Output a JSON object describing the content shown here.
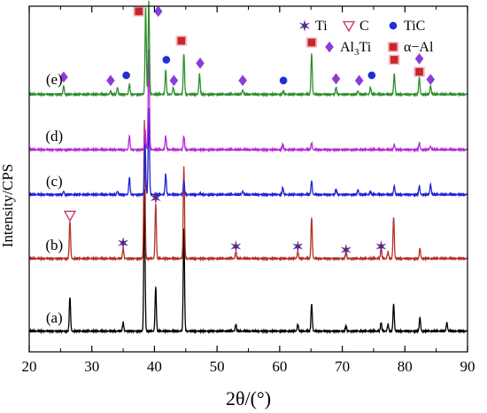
{
  "chart_data": {
    "type": "line",
    "title": "",
    "xlabel": "2θ/(°)",
    "ylabel": "Intensity/CPS",
    "xlim": [
      20,
      90
    ],
    "xticks": [
      20,
      30,
      40,
      50,
      60,
      70,
      80,
      90
    ],
    "grid": false,
    "legend": {
      "placement": "top-right",
      "entries": [
        {
          "label": "Ti",
          "symbol": "star",
          "color": "#5b2a86"
        },
        {
          "label": "C",
          "symbol": "triangle-down-open",
          "color": "#c0306a"
        },
        {
          "label": "TiC",
          "symbol": "circle",
          "color": "#1f2fd6"
        },
        {
          "label": "Al3Ti",
          "symbol": "diamond",
          "color": "#8a3ddb"
        },
        {
          "label": "α−Al",
          "symbol": "square",
          "color": "#c8262b"
        }
      ]
    },
    "series": [
      {
        "name": "(a)",
        "color": "#000000",
        "baseline": 0.06,
        "peaks": [
          [
            26.5,
            0.1
          ],
          [
            35.0,
            0.025
          ],
          [
            38.4,
            0.41
          ],
          [
            40.2,
            0.13
          ],
          [
            44.7,
            0.3
          ],
          [
            53.0,
            0.02
          ],
          [
            62.9,
            0.02
          ],
          [
            65.1,
            0.08
          ],
          [
            70.6,
            0.015
          ],
          [
            76.2,
            0.025
          ],
          [
            77.3,
            0.02
          ],
          [
            78.2,
            0.08
          ],
          [
            82.4,
            0.04
          ],
          [
            86.7,
            0.025
          ]
        ]
      },
      {
        "name": "(b)",
        "color": "#b4312a",
        "baseline": 0.27,
        "peaks": [
          [
            26.5,
            0.11
          ],
          [
            35.0,
            0.03
          ],
          [
            38.4,
            0.4
          ],
          [
            40.2,
            0.16
          ],
          [
            44.7,
            0.27
          ],
          [
            53.0,
            0.02
          ],
          [
            62.9,
            0.02
          ],
          [
            65.1,
            0.12
          ],
          [
            70.6,
            0.02
          ],
          [
            76.2,
            0.03
          ],
          [
            77.3,
            0.02
          ],
          [
            78.2,
            0.12
          ],
          [
            82.4,
            0.03
          ]
        ]
      },
      {
        "name": "(c)",
        "color": "#2323d4",
        "baseline": 0.455,
        "peaks": [
          [
            25.5,
            0.01
          ],
          [
            34.1,
            0.01
          ],
          [
            36.0,
            0.05
          ],
          [
            38.5,
            0.15
          ],
          [
            39.1,
            0.25
          ],
          [
            41.8,
            0.06
          ],
          [
            44.7,
            0.04
          ],
          [
            47.3,
            0.005
          ],
          [
            54.1,
            0.01
          ],
          [
            60.5,
            0.02
          ],
          [
            65.1,
            0.04
          ],
          [
            69.0,
            0.015
          ],
          [
            72.5,
            0.015
          ],
          [
            74.5,
            0.01
          ],
          [
            78.3,
            0.025
          ],
          [
            82.3,
            0.025
          ],
          [
            84.1,
            0.03
          ]
        ]
      },
      {
        "name": "(d)",
        "color": "#b82ad6",
        "baseline": 0.585,
        "peaks": [
          [
            36.0,
            0.04
          ],
          [
            38.5,
            0.06
          ],
          [
            39.1,
            0.29
          ],
          [
            41.8,
            0.04
          ],
          [
            44.7,
            0.04
          ],
          [
            60.5,
            0.015
          ],
          [
            65.1,
            0.02
          ],
          [
            78.3,
            0.015
          ],
          [
            82.3,
            0.02
          ],
          [
            84.1,
            0.01
          ]
        ]
      },
      {
        "name": "(e)",
        "color": "#2f8f2f",
        "baseline": 0.745,
        "peaks": [
          [
            25.5,
            0.025
          ],
          [
            33.0,
            0.01
          ],
          [
            34.1,
            0.02
          ],
          [
            36.0,
            0.03
          ],
          [
            38.6,
            0.25
          ],
          [
            39.1,
            0.27
          ],
          [
            41.8,
            0.07
          ],
          [
            43.0,
            0.02
          ],
          [
            44.7,
            0.12
          ],
          [
            47.2,
            0.06
          ],
          [
            54.1,
            0.012
          ],
          [
            60.6,
            0.01
          ],
          [
            65.1,
            0.12
          ],
          [
            69.0,
            0.02
          ],
          [
            72.5,
            0.01
          ],
          [
            74.5,
            0.02
          ],
          [
            78.3,
            0.06
          ],
          [
            82.3,
            0.05
          ],
          [
            84.1,
            0.025
          ]
        ]
      }
    ],
    "curve_labels": [
      {
        "text": "(a)",
        "x": 24.0,
        "y": 0.085
      },
      {
        "text": "(b)",
        "x": 24.0,
        "y": 0.295
      },
      {
        "text": "(c)",
        "x": 24.0,
        "y": 0.48
      },
      {
        "text": "(d)",
        "x": 24.0,
        "y": 0.61
      },
      {
        "text": "(e)",
        "x": 24.0,
        "y": 0.775
      }
    ],
    "annotations": [
      {
        "symbol": "triangle-down-open",
        "x": 26.5,
        "y": 0.395
      },
      {
        "symbol": "star",
        "x": 35.0,
        "y": 0.315
      },
      {
        "symbol": "star",
        "x": 40.2,
        "y": 0.445
      },
      {
        "symbol": "star",
        "x": 53.0,
        "y": 0.305
      },
      {
        "symbol": "star",
        "x": 62.9,
        "y": 0.305
      },
      {
        "symbol": "star",
        "x": 70.6,
        "y": 0.295
      },
      {
        "symbol": "star",
        "x": 76.2,
        "y": 0.305
      },
      {
        "symbol": "diamond",
        "x": 25.5,
        "y": 0.795
      },
      {
        "symbol": "diamond",
        "x": 33.0,
        "y": 0.785
      },
      {
        "symbol": "circle",
        "x": 35.5,
        "y": 0.8
      },
      {
        "symbol": "square",
        "x": 37.5,
        "y": 0.985
      },
      {
        "symbol": "diamond",
        "x": 40.6,
        "y": 0.985
      },
      {
        "symbol": "circle",
        "x": 41.9,
        "y": 0.845
      },
      {
        "symbol": "diamond",
        "x": 43.1,
        "y": 0.785
      },
      {
        "symbol": "square",
        "x": 44.3,
        "y": 0.9
      },
      {
        "symbol": "diamond",
        "x": 47.3,
        "y": 0.835
      },
      {
        "symbol": "diamond",
        "x": 54.1,
        "y": 0.785
      },
      {
        "symbol": "circle",
        "x": 60.6,
        "y": 0.785
      },
      {
        "symbol": "square",
        "x": 65.1,
        "y": 0.895
      },
      {
        "symbol": "diamond",
        "x": 69.0,
        "y": 0.79
      },
      {
        "symbol": "diamond",
        "x": 72.7,
        "y": 0.785
      },
      {
        "symbol": "circle",
        "x": 74.7,
        "y": 0.8
      },
      {
        "symbol": "square",
        "x": 78.3,
        "y": 0.845
      },
      {
        "symbol": "diamond",
        "x": 82.3,
        "y": 0.848
      },
      {
        "symbol": "square",
        "x": 82.3,
        "y": 0.81
      },
      {
        "symbol": "diamond",
        "x": 84.1,
        "y": 0.788
      }
    ]
  }
}
